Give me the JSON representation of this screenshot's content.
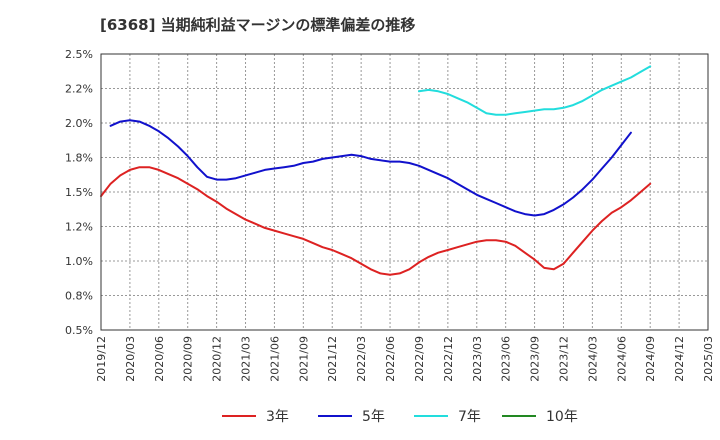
{
  "chart_data": {
    "type": "line",
    "title": "[6368]  当期純利益マージンの標準偏差の推移",
    "xlabel": "",
    "ylabel": "",
    "ylim": [
      0.5,
      2.5
    ],
    "y_ticks": [
      "0.5%",
      "0.8%",
      "1.0%",
      "1.2%",
      "1.5%",
      "1.8%",
      "2.0%",
      "2.2%",
      "2.5%"
    ],
    "y_tick_values": [
      0.5,
      0.75,
      1.0,
      1.25,
      1.5,
      1.75,
      2.0,
      2.25,
      2.5
    ],
    "x_ticks": [
      "2019/12",
      "2020/03",
      "2020/06",
      "2020/09",
      "2020/12",
      "2021/03",
      "2021/06",
      "2021/09",
      "2021/12",
      "2022/03",
      "2022/06",
      "2022/09",
      "2022/12",
      "2023/03",
      "2023/06",
      "2023/09",
      "2023/12",
      "2024/03",
      "2024/06",
      "2024/09",
      "2024/12",
      "2025/03"
    ],
    "grid": true,
    "legend_position": "bottom",
    "series": [
      {
        "name": "3年",
        "color": "#dd2222",
        "points": [
          [
            "2019/12",
            1.47
          ],
          [
            "2020/01",
            1.56
          ],
          [
            "2020/02",
            1.62
          ],
          [
            "2020/03",
            1.66
          ],
          [
            "2020/04",
            1.68
          ],
          [
            "2020/05",
            1.68
          ],
          [
            "2020/06",
            1.66
          ],
          [
            "2020/07",
            1.63
          ],
          [
            "2020/08",
            1.6
          ],
          [
            "2020/09",
            1.56
          ],
          [
            "2020/10",
            1.52
          ],
          [
            "2020/11",
            1.47
          ],
          [
            "2020/12",
            1.43
          ],
          [
            "2021/01",
            1.38
          ],
          [
            "2021/02",
            1.34
          ],
          [
            "2021/03",
            1.3
          ],
          [
            "2021/04",
            1.27
          ],
          [
            "2021/05",
            1.24
          ],
          [
            "2021/06",
            1.22
          ],
          [
            "2021/07",
            1.2
          ],
          [
            "2021/08",
            1.18
          ],
          [
            "2021/09",
            1.16
          ],
          [
            "2021/10",
            1.13
          ],
          [
            "2021/11",
            1.1
          ],
          [
            "2021/12",
            1.08
          ],
          [
            "2022/01",
            1.05
          ],
          [
            "2022/02",
            1.02
          ],
          [
            "2022/03",
            0.98
          ],
          [
            "2022/04",
            0.94
          ],
          [
            "2022/05",
            0.91
          ],
          [
            "2022/06",
            0.9
          ],
          [
            "2022/07",
            0.91
          ],
          [
            "2022/08",
            0.94
          ],
          [
            "2022/09",
            0.99
          ],
          [
            "2022/10",
            1.03
          ],
          [
            "2022/11",
            1.06
          ],
          [
            "2022/12",
            1.08
          ],
          [
            "2023/01",
            1.1
          ],
          [
            "2023/02",
            1.12
          ],
          [
            "2023/03",
            1.14
          ],
          [
            "2023/04",
            1.15
          ],
          [
            "2023/05",
            1.15
          ],
          [
            "2023/06",
            1.14
          ],
          [
            "2023/07",
            1.11
          ],
          [
            "2023/08",
            1.06
          ],
          [
            "2023/09",
            1.01
          ],
          [
            "2023/10",
            0.95
          ],
          [
            "2023/11",
            0.94
          ],
          [
            "2023/12",
            0.98
          ],
          [
            "2024/01",
            1.06
          ],
          [
            "2024/02",
            1.14
          ],
          [
            "2024/03",
            1.22
          ],
          [
            "2024/04",
            1.29
          ],
          [
            "2024/05",
            1.35
          ],
          [
            "2024/06",
            1.39
          ],
          [
            "2024/07",
            1.44
          ],
          [
            "2024/08",
            1.5
          ],
          [
            "2024/09",
            1.56
          ]
        ]
      },
      {
        "name": "5年",
        "color": "#1111cc",
        "points": [
          [
            "2020/01",
            1.98
          ],
          [
            "2020/02",
            2.01
          ],
          [
            "2020/03",
            2.02
          ],
          [
            "2020/04",
            2.01
          ],
          [
            "2020/05",
            1.98
          ],
          [
            "2020/06",
            1.94
          ],
          [
            "2020/07",
            1.89
          ],
          [
            "2020/08",
            1.83
          ],
          [
            "2020/09",
            1.76
          ],
          [
            "2020/10",
            1.68
          ],
          [
            "2020/11",
            1.61
          ],
          [
            "2020/12",
            1.59
          ],
          [
            "2021/01",
            1.59
          ],
          [
            "2021/02",
            1.6
          ],
          [
            "2021/03",
            1.62
          ],
          [
            "2021/04",
            1.64
          ],
          [
            "2021/05",
            1.66
          ],
          [
            "2021/06",
            1.67
          ],
          [
            "2021/07",
            1.68
          ],
          [
            "2021/08",
            1.69
          ],
          [
            "2021/09",
            1.71
          ],
          [
            "2021/10",
            1.72
          ],
          [
            "2021/11",
            1.74
          ],
          [
            "2021/12",
            1.75
          ],
          [
            "2022/01",
            1.76
          ],
          [
            "2022/02",
            1.77
          ],
          [
            "2022/03",
            1.76
          ],
          [
            "2022/04",
            1.74
          ],
          [
            "2022/05",
            1.73
          ],
          [
            "2022/06",
            1.72
          ],
          [
            "2022/07",
            1.72
          ],
          [
            "2022/08",
            1.71
          ],
          [
            "2022/09",
            1.69
          ],
          [
            "2022/10",
            1.66
          ],
          [
            "2022/11",
            1.63
          ],
          [
            "2022/12",
            1.6
          ],
          [
            "2023/01",
            1.56
          ],
          [
            "2023/02",
            1.52
          ],
          [
            "2023/03",
            1.48
          ],
          [
            "2023/04",
            1.45
          ],
          [
            "2023/05",
            1.42
          ],
          [
            "2023/06",
            1.39
          ],
          [
            "2023/07",
            1.36
          ],
          [
            "2023/08",
            1.34
          ],
          [
            "2023/09",
            1.33
          ],
          [
            "2023/10",
            1.34
          ],
          [
            "2023/11",
            1.37
          ],
          [
            "2023/12",
            1.41
          ],
          [
            "2024/01",
            1.46
          ],
          [
            "2024/02",
            1.52
          ],
          [
            "2024/03",
            1.59
          ],
          [
            "2024/04",
            1.67
          ],
          [
            "2024/05",
            1.75
          ],
          [
            "2024/06",
            1.84
          ],
          [
            "2024/07",
            1.93
          ]
        ]
      },
      {
        "name": "7年",
        "color": "#22dddd",
        "points": [
          [
            "2022/09",
            2.23
          ],
          [
            "2022/10",
            2.24
          ],
          [
            "2022/11",
            2.23
          ],
          [
            "2022/12",
            2.21
          ],
          [
            "2023/01",
            2.18
          ],
          [
            "2023/02",
            2.15
          ],
          [
            "2023/03",
            2.11
          ],
          [
            "2023/04",
            2.07
          ],
          [
            "2023/05",
            2.06
          ],
          [
            "2023/06",
            2.06
          ],
          [
            "2023/07",
            2.07
          ],
          [
            "2023/08",
            2.08
          ],
          [
            "2023/09",
            2.09
          ],
          [
            "2023/10",
            2.1
          ],
          [
            "2023/11",
            2.1
          ],
          [
            "2023/12",
            2.11
          ],
          [
            "2024/01",
            2.13
          ],
          [
            "2024/02",
            2.16
          ],
          [
            "2024/03",
            2.2
          ],
          [
            "2024/04",
            2.24
          ],
          [
            "2024/05",
            2.27
          ],
          [
            "2024/06",
            2.3
          ],
          [
            "2024/07",
            2.33
          ],
          [
            "2024/08",
            2.37
          ],
          [
            "2024/09",
            2.41
          ]
        ]
      },
      {
        "name": "10年",
        "color": "#228822",
        "points": []
      }
    ]
  }
}
